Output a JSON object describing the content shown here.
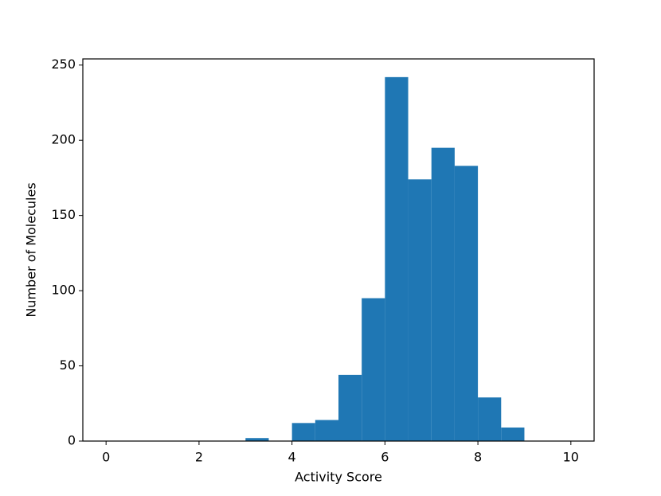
{
  "chart_data": {
    "type": "histogram",
    "xlabel": "Activity Score",
    "ylabel": "Number of Molecules",
    "bins": [
      0,
      0.5,
      1,
      1.5,
      2,
      2.5,
      3,
      3.5,
      4,
      4.5,
      5,
      5.5,
      6,
      6.5,
      7,
      7.5,
      8,
      8.5,
      9,
      9.5,
      10
    ],
    "counts": [
      0,
      0,
      0,
      0,
      0,
      0,
      2,
      0,
      12,
      14,
      44,
      95,
      242,
      174,
      195,
      183,
      29,
      9,
      0,
      0
    ],
    "color": "#1f77b4",
    "xlim": [
      -0.5,
      10.5
    ],
    "ylim": [
      0,
      254.1
    ],
    "xticks": [
      0,
      2,
      4,
      6,
      8,
      10
    ],
    "yticks": [
      0,
      50,
      100,
      150,
      200,
      250
    ]
  }
}
